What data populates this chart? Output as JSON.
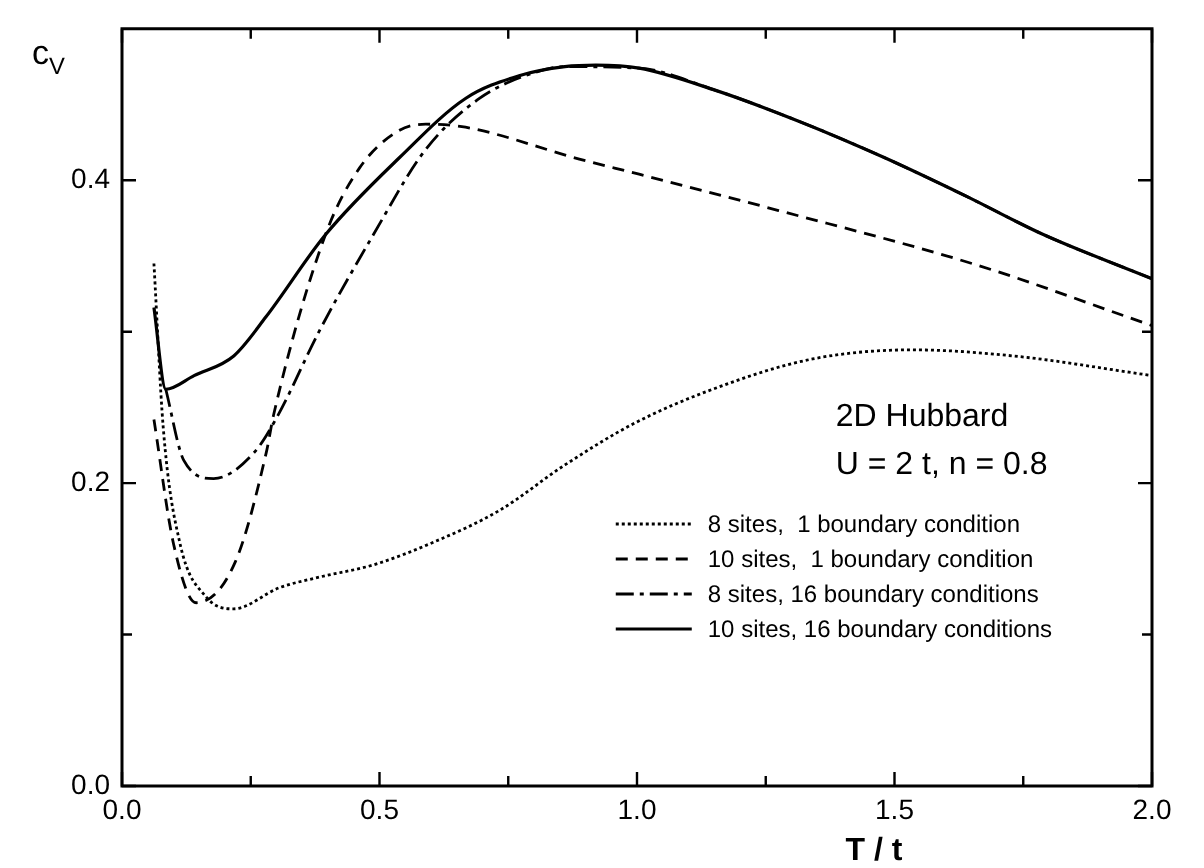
{
  "chart_data": {
    "type": "line",
    "xlabel": "T / t",
    "ylabel": "c$_{V}$",
    "annotations": [
      "2D Hubbard",
      "U = 2 t, n = 0.8"
    ],
    "xlim": [
      0,
      2
    ],
    "ylim": [
      0,
      0.5
    ],
    "xticks": [
      {
        "value": 0,
        "label": "0.0"
      },
      {
        "value": 0.25,
        "label": null
      },
      {
        "value": 0.5,
        "label": "0.5"
      },
      {
        "value": 0.75,
        "label": null
      },
      {
        "value": 1,
        "label": "1.0"
      },
      {
        "value": 1.25,
        "label": null
      },
      {
        "value": 1.5,
        "label": "1.5"
      },
      {
        "value": 1.75,
        "label": null
      },
      {
        "value": 2,
        "label": "2.0"
      }
    ],
    "yticks": [
      {
        "value": 0,
        "label": "0.0"
      },
      {
        "value": 0.1,
        "label": null
      },
      {
        "value": 0.2,
        "label": "0.2"
      },
      {
        "value": 0.3,
        "label": null
      },
      {
        "value": 0.4,
        "label": "0.4"
      }
    ],
    "legend": "bottom right",
    "grid": false,
    "marker": "none",
    "series": [
      {
        "name": "8 sites,  1 boundary condition",
        "color": "#000000",
        "line_style": "dotted",
        "x": [
          0.062,
          0.08,
          0.112,
          0.163,
          0.217,
          0.306,
          0.384,
          0.488,
          0.605,
          0.733,
          0.86,
          0.992,
          1.147,
          1.341,
          1.535,
          1.73,
          2.0
        ],
        "values": [
          0.345,
          0.237,
          0.161,
          0.125,
          0.117,
          0.131,
          0.138,
          0.146,
          0.161,
          0.182,
          0.212,
          0.239,
          0.262,
          0.282,
          0.288,
          0.284,
          0.271
        ]
      },
      {
        "name": "10 sites,  1 boundary condition",
        "color": "#000000",
        "line_style": "dashed",
        "x": [
          0.062,
          0.1,
          0.144,
          0.22,
          0.28,
          0.295,
          0.395,
          0.461,
          0.539,
          0.59,
          0.667,
          0.888,
          1.004,
          1.275,
          1.66,
          2.0
        ],
        "values": [
          0.242,
          0.16,
          0.121,
          0.148,
          0.22,
          0.246,
          0.364,
          0.408,
          0.433,
          0.437,
          0.435,
          0.414,
          0.404,
          0.38,
          0.344,
          0.304
        ]
      },
      {
        "name": "8 sites, 16 boundary conditions",
        "color": "#000000",
        "line_style": "dashdot",
        "x": [
          0.085,
          0.12,
          0.178,
          0.256,
          0.3,
          0.384,
          0.488,
          0.589,
          0.694,
          0.8,
          0.86,
          1.004,
          1.147,
          1.314,
          1.48,
          1.636,
          1.79,
          2.0
        ],
        "values": [
          0.262,
          0.215,
          0.203,
          0.22,
          0.243,
          0.301,
          0.364,
          0.42,
          0.454,
          0.471,
          0.475,
          0.474,
          0.46,
          0.439,
          0.415,
          0.39,
          0.364,
          0.335
        ]
      },
      {
        "name": "10 sites, 16 boundary conditions",
        "color": "#000000",
        "line_style": "solid",
        "x": [
          0.062,
          0.085,
          0.14,
          0.217,
          0.28,
          0.395,
          0.539,
          0.667,
          0.771,
          0.86,
          0.92,
          1.004,
          1.147,
          1.314,
          1.48,
          1.636,
          1.79,
          2.0
        ],
        "values": [
          0.316,
          0.262,
          0.271,
          0.284,
          0.31,
          0.364,
          0.415,
          0.454,
          0.469,
          0.475,
          0.476,
          0.474,
          0.46,
          0.439,
          0.415,
          0.39,
          0.364,
          0.335
        ]
      }
    ]
  }
}
